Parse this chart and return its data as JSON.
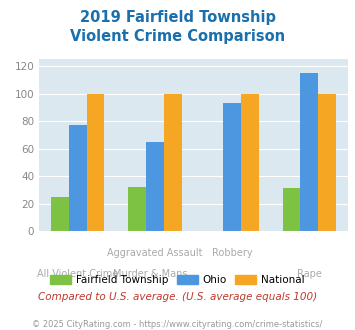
{
  "title": "2019 Fairfield Township\nViolent Crime Comparison",
  "series": {
    "Fairfield Township": [
      25,
      32,
      0,
      31
    ],
    "Ohio": [
      77,
      65,
      93,
      115
    ],
    "National": [
      100,
      100,
      100,
      100
    ]
  },
  "colors": {
    "Fairfield Township": "#7dc242",
    "Ohio": "#4d96e0",
    "National": "#f5a623"
  },
  "ylim": [
    0,
    125
  ],
  "yticks": [
    0,
    20,
    40,
    60,
    80,
    100,
    120
  ],
  "background_color": "#dce8f0",
  "title_color": "#1a6fad",
  "footer_text": "Compared to U.S. average. (U.S. average equals 100)",
  "copyright_text": "© 2025 CityRating.com - https://www.cityrating.com/crime-statistics/",
  "footer_color": "#c0392b",
  "copyright_color": "#999999",
  "xlabel_color": "#aaaaaa"
}
